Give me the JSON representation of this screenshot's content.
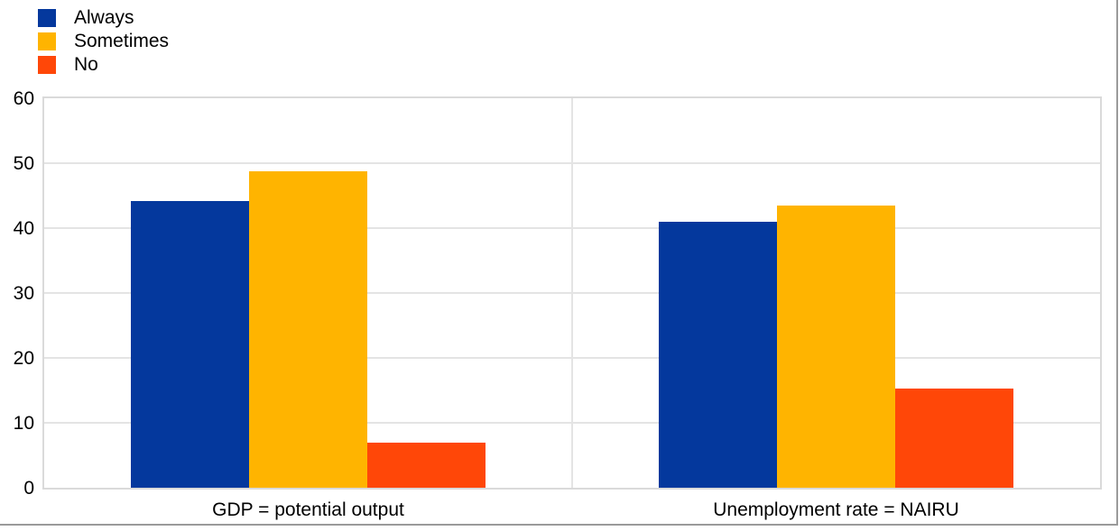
{
  "chart_data": {
    "type": "bar",
    "title": "",
    "xlabel": "",
    "ylabel": "",
    "categories": [
      "GDP = potential output",
      "Unemployment rate = NAIRU"
    ],
    "series": [
      {
        "name": "Always",
        "color": "#04389D",
        "values": [
          44.2,
          41.0
        ]
      },
      {
        "name": "Sometimes",
        "color": "#FFB400",
        "values": [
          48.7,
          43.5
        ]
      },
      {
        "name": "No",
        "color": "#FF4708",
        "values": [
          6.9,
          15.3
        ]
      }
    ],
    "ylim": [
      0,
      60
    ],
    "yticks": [
      0,
      10,
      20,
      30,
      40,
      50,
      60
    ],
    "grid": true,
    "legend_position": "top-left"
  },
  "colors": {
    "background": "#FFFFFF",
    "plot_border": "#DADADA",
    "gridline": "#E4E4E4",
    "frame_edge": "#9A9A9A",
    "text": "#000000"
  }
}
